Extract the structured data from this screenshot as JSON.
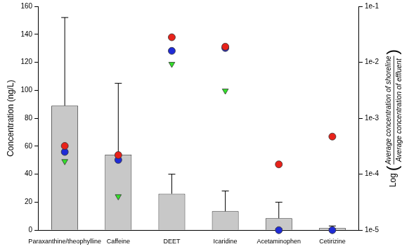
{
  "chart_data": {
    "type": "bar",
    "categories": [
      "Paraxanthine/theophylline",
      "Caffeine",
      "DEET",
      "Icaridine",
      "Acetaminophen",
      "Cetirizine"
    ],
    "y_label": "Concentration (ng/L)",
    "y2_label": {
      "text": "Log",
      "numerator": "Average concentration of shoreline",
      "denominator": "Average concentration of effluent"
    },
    "ylim": [
      0,
      160
    ],
    "yticks": [
      0,
      20,
      40,
      60,
      80,
      100,
      120,
      140,
      160
    ],
    "y2lim": [
      1e-05,
      0.1
    ],
    "y2ticks": [
      {
        "value": 1e-05,
        "label": "1e-5"
      },
      {
        "value": 0.0001,
        "label": "1e-4"
      },
      {
        "value": 0.001,
        "label": "1e-3"
      },
      {
        "value": 0.01,
        "label": "1e-2"
      },
      {
        "value": 0.1,
        "label": "1e-1"
      }
    ],
    "log": "y2",
    "grid": false,
    "series": [
      {
        "type": "bar",
        "color": "#c8c8c8",
        "values": [
          89,
          54,
          26,
          13.5,
          8.5,
          1.5
        ],
        "error": [
          63,
          51,
          14,
          14.5,
          11.5,
          1.5
        ]
      },
      {
        "type": "scatter",
        "axis": "y2",
        "color": "#e8221a",
        "marker": "circle",
        "values": [
          0.00032,
          0.00022,
          0.028,
          0.019,
          0.00015,
          0.00047
        ]
      },
      {
        "type": "scatter",
        "axis": "y2",
        "color": "#1f2bd6",
        "marker": "circle",
        "values": [
          0.00025,
          0.00018,
          0.016,
          0.018,
          1e-05,
          1e-05
        ]
      },
      {
        "type": "scatter",
        "axis": "y2",
        "color": "#33e02a",
        "marker": "triangle_down",
        "values": [
          0.00017,
          4e-05,
          0.0093,
          0.0031,
          1e-05,
          1e-05
        ]
      }
    ]
  }
}
